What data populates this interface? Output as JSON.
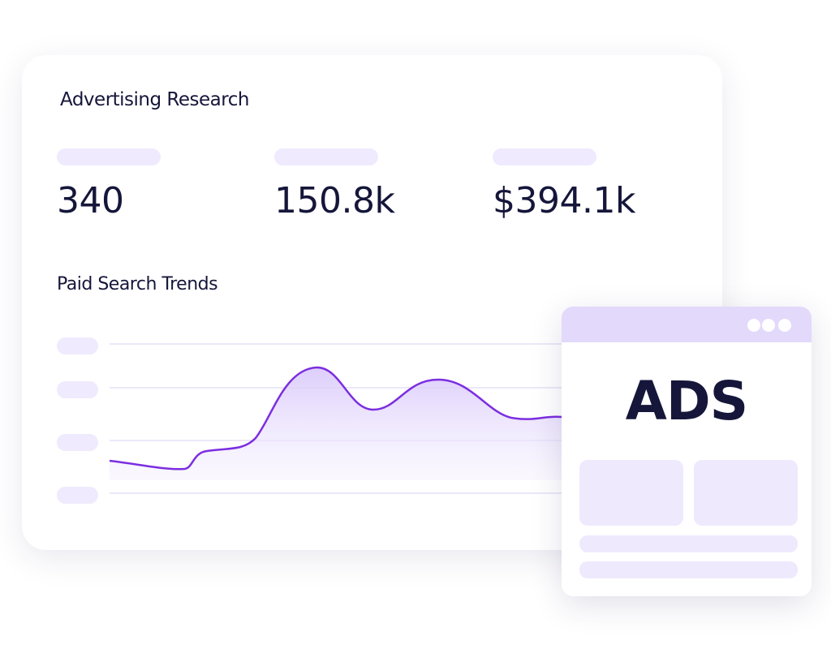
{
  "header": {
    "title": "Advertising Research"
  },
  "metrics": [
    "340",
    "150.8k",
    "$394.1k"
  ],
  "section": {
    "title": "Paid Search Trends"
  },
  "ad_window": {
    "label": "ADS"
  }
}
